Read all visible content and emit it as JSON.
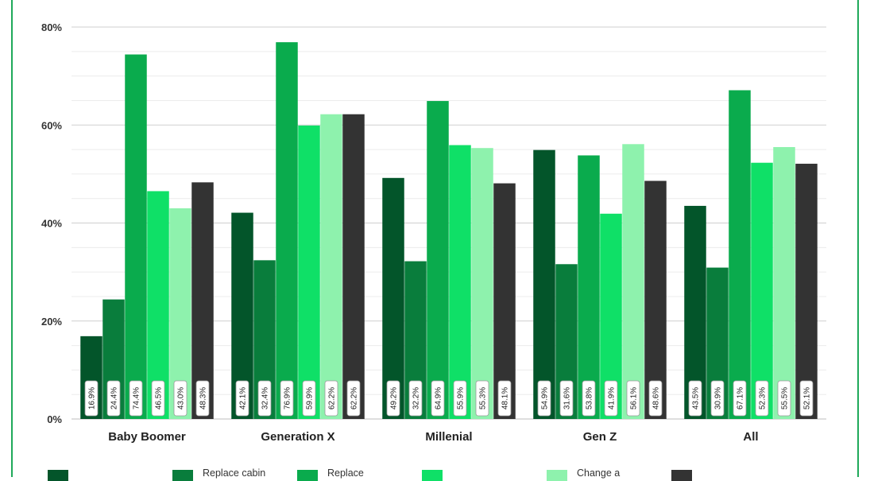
{
  "chart_data": {
    "type": "bar",
    "categories": [
      "Baby Boomer",
      "Generation X",
      "Millenial",
      "Gen Z",
      "All"
    ],
    "y_ticks": [
      "0%",
      "20%",
      "40%",
      "60%",
      "80%"
    ],
    "ylim": [
      0,
      80
    ],
    "grid": true,
    "series": [
      {
        "color": "#03552a",
        "values": [
          16.9,
          42.1,
          49.2,
          54.9,
          43.5
        ],
        "labels": [
          "16.9%",
          "42.1%",
          "49.2%",
          "54.9%",
          "43.5%"
        ]
      },
      {
        "name": "Replace cabin",
        "color": "#097d3c",
        "values": [
          24.4,
          32.4,
          32.2,
          31.6,
          30.9
        ],
        "labels": [
          "24.4%",
          "32.4%",
          "32.2%",
          "31.6%",
          "30.9%"
        ]
      },
      {
        "name": "Replace",
        "color": "#0aab4d",
        "values": [
          74.4,
          76.9,
          64.9,
          53.8,
          67.1
        ],
        "labels": [
          "74.4%",
          "76.9%",
          "64.9%",
          "53.8%",
          "67.1%"
        ]
      },
      {
        "color": "#0fe067",
        "values": [
          46.5,
          59.9,
          55.9,
          41.9,
          52.3
        ],
        "labels": [
          "46.5%",
          "59.9%",
          "55.9%",
          "41.9%",
          "52.3%"
        ]
      },
      {
        "name": "Change a",
        "color": "#8ef2ad",
        "values": [
          43.0,
          62.2,
          55.3,
          56.1,
          55.5
        ],
        "labels": [
          "43.0%",
          "62.2%",
          "55.3%",
          "56.1%",
          "55.5%"
        ]
      },
      {
        "color": "#333333",
        "values": [
          48.3,
          62.2,
          48.1,
          48.6,
          52.1
        ],
        "labels": [
          "48.3%",
          "62.2%",
          "48.1%",
          "48.6%",
          "52.1%"
        ]
      }
    ]
  }
}
